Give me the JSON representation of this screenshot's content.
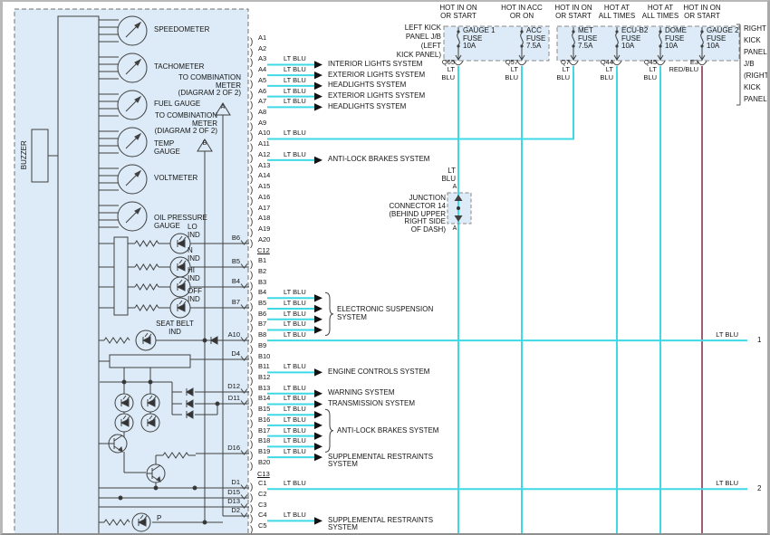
{
  "combination_meter": {
    "buzzer_label": "BUZZER",
    "gauges": [
      {
        "label": "SPEEDOMETER"
      },
      {
        "label": "TACHOMETER"
      },
      {
        "label": "FUEL GAUGE"
      },
      {
        "label": "TEMP\nGAUGE"
      },
      {
        "label": "VOLTMETER"
      },
      {
        "label": "OIL PRESSURE\nGAUGE"
      }
    ],
    "indicators": [
      {
        "label": "LO\nIND"
      },
      {
        "label": "N\nIND"
      },
      {
        "label": "HI\nIND"
      },
      {
        "label": "OFF\nIND"
      }
    ],
    "seat_belt_label": "SEAT BELT\nIND",
    "parking_label": "P",
    "meter_pins": [
      "B6",
      "B5",
      "B4",
      "B7",
      "A10",
      "D4",
      "D12",
      "D11",
      "D16",
      "D1",
      "D15",
      "D13",
      "D2"
    ],
    "ref_notes": [
      {
        "text": "TO COMBINATION\nMETER\n(DIAGRAM 2 OF 2)",
        "tag": "A"
      },
      {
        "text": "TO COMBINATION\nMETER\n(DIAGRAM 2 OF 2)",
        "tag": "B"
      }
    ]
  },
  "connector_pins": [
    {
      "id": "A1"
    },
    {
      "id": "A2"
    },
    {
      "id": "A3",
      "wire": "LT BLU",
      "system": "INTERIOR LIGHTS SYSTEM"
    },
    {
      "id": "A4",
      "wire": "LT BLU",
      "system": "EXTERIOR LIGHTS SYSTEM"
    },
    {
      "id": "A5",
      "wire": "LT BLU",
      "system": "HEADLIGHTS SYSTEM"
    },
    {
      "id": "A6",
      "wire": "LT BLU",
      "system": "EXTERIOR LIGHTS SYSTEM"
    },
    {
      "id": "A7",
      "wire": "LT BLU",
      "system": "HEADLIGHTS SYSTEM"
    },
    {
      "id": "A8"
    },
    {
      "id": "A9"
    },
    {
      "id": "A10",
      "wire": "LT BLU",
      "long": "met"
    },
    {
      "id": "A11"
    },
    {
      "id": "A12",
      "wire": "LT BLU",
      "system": "ANTI-LOCK BRAKES SYSTEM"
    },
    {
      "id": "A13"
    },
    {
      "id": "A14"
    },
    {
      "id": "A15"
    },
    {
      "id": "A16"
    },
    {
      "id": "A17"
    },
    {
      "id": "A18"
    },
    {
      "id": "A19"
    },
    {
      "id": "A20"
    },
    {
      "id": "C12",
      "underline": true
    },
    {
      "id": "B1"
    },
    {
      "id": "B2"
    },
    {
      "id": "B3"
    },
    {
      "id": "B4",
      "wire": "LT BLU",
      "group": "ES"
    },
    {
      "id": "B5",
      "wire": "LT BLU",
      "group": "ES"
    },
    {
      "id": "B6",
      "wire": "LT BLU",
      "group": "ES"
    },
    {
      "id": "B7",
      "wire": "LT BLU",
      "group": "ES"
    },
    {
      "id": "B8",
      "wire": "LT BLU",
      "long": "edge1"
    },
    {
      "id": "B9"
    },
    {
      "id": "B10"
    },
    {
      "id": "B11",
      "wire": "LT BLU",
      "system": "ENGINE CONTROLS SYSTEM"
    },
    {
      "id": "B12"
    },
    {
      "id": "B13",
      "wire": "LT BLU",
      "system": "WARNING SYSTEM"
    },
    {
      "id": "B14",
      "wire": "LT BLU",
      "system": "TRANSMISSION SYSTEM"
    },
    {
      "id": "B15",
      "wire": "LT BLU",
      "group": "ABS"
    },
    {
      "id": "B16",
      "wire": "LT BLU",
      "group": "ABS"
    },
    {
      "id": "B17",
      "wire": "LT BLU",
      "group": "ABS"
    },
    {
      "id": "B18",
      "wire": "LT BLU",
      "group": "ABS"
    },
    {
      "id": "B19",
      "wire": "LT BLU",
      "system": "SUPPLEMENTAL RESTRAINTS\nSYSTEM"
    },
    {
      "id": "B20"
    },
    {
      "id": "C13",
      "underline": true
    },
    {
      "id": "C1",
      "wire": "LT BLU",
      "long": "edge2"
    },
    {
      "id": "C2"
    },
    {
      "id": "C3"
    },
    {
      "id": "C4",
      "wire": "LT BLU",
      "system": "SUPPLEMENTAL RESTRAINTS\nSYSTEM"
    },
    {
      "id": "C5"
    }
  ],
  "systems_groups": {
    "ES": "ELECTRONIC SUSPENSION\nSYSTEM",
    "ABS": "ANTI-LOCK BRAKES SYSTEM"
  },
  "power": {
    "left_jb_label": "LEFT KICK\nPANEL J/B\n(LEFT\nKICK PANEL)",
    "right_jb_label": "RIGHT\nKICK\nPANEL\nJ/B\n(RIGHT\nKICK\nPANEL)",
    "fuses": [
      {
        "header": "HOT IN ON\nOR START",
        "name": "GAUGE 1\nFUSE\n10A",
        "connector": "Q65",
        "wire": "LT\nBLU",
        "box": "left"
      },
      {
        "header": "HOT IN ACC\nOR ON",
        "name": "ACC\nFUSE\n7.5A",
        "connector": "Q57",
        "wire": "LT\nBLU",
        "box": "left"
      },
      {
        "header": "HOT IN ON\nOR START",
        "name": "MET\nFUSE\n7.5A",
        "connector": "Q7",
        "wire": "LT\nBLU",
        "box": "right"
      },
      {
        "header": "HOT AT\nALL TIMES",
        "name": "ECU-B2\nFUSE\n10A",
        "connector": "Q44",
        "wire": "LT\nBLU",
        "box": "right"
      },
      {
        "header": "HOT AT\nALL TIMES",
        "name": "DOME\nFUSE\n10A",
        "connector": "Q45",
        "wire": "LT\nBLU",
        "box": "right"
      },
      {
        "header": "HOT IN ON\nOR START",
        "name": "GAUGE 2\nFUSE\n10A",
        "connector": "E3",
        "wire": "RED/BLU",
        "box": "right"
      }
    ]
  },
  "junction_connector": {
    "label": "JUNCTION\nCONNECTOR 14\n(BEHIND UPPER\nRIGHT SIDE\nOF DASH)",
    "wire": "LT\nBLU",
    "tag_top": "A",
    "tag_bottom": "A"
  },
  "edge_wires": [
    {
      "num": "1",
      "color": "LT BLU"
    },
    {
      "num": "2",
      "color": "LT BLU"
    }
  ],
  "colors": {
    "wire_light_blue": "#3fd9e6",
    "wire_red_blue": "#a05c72",
    "panel_fill": "#dcebf7",
    "line": "#404040"
  }
}
